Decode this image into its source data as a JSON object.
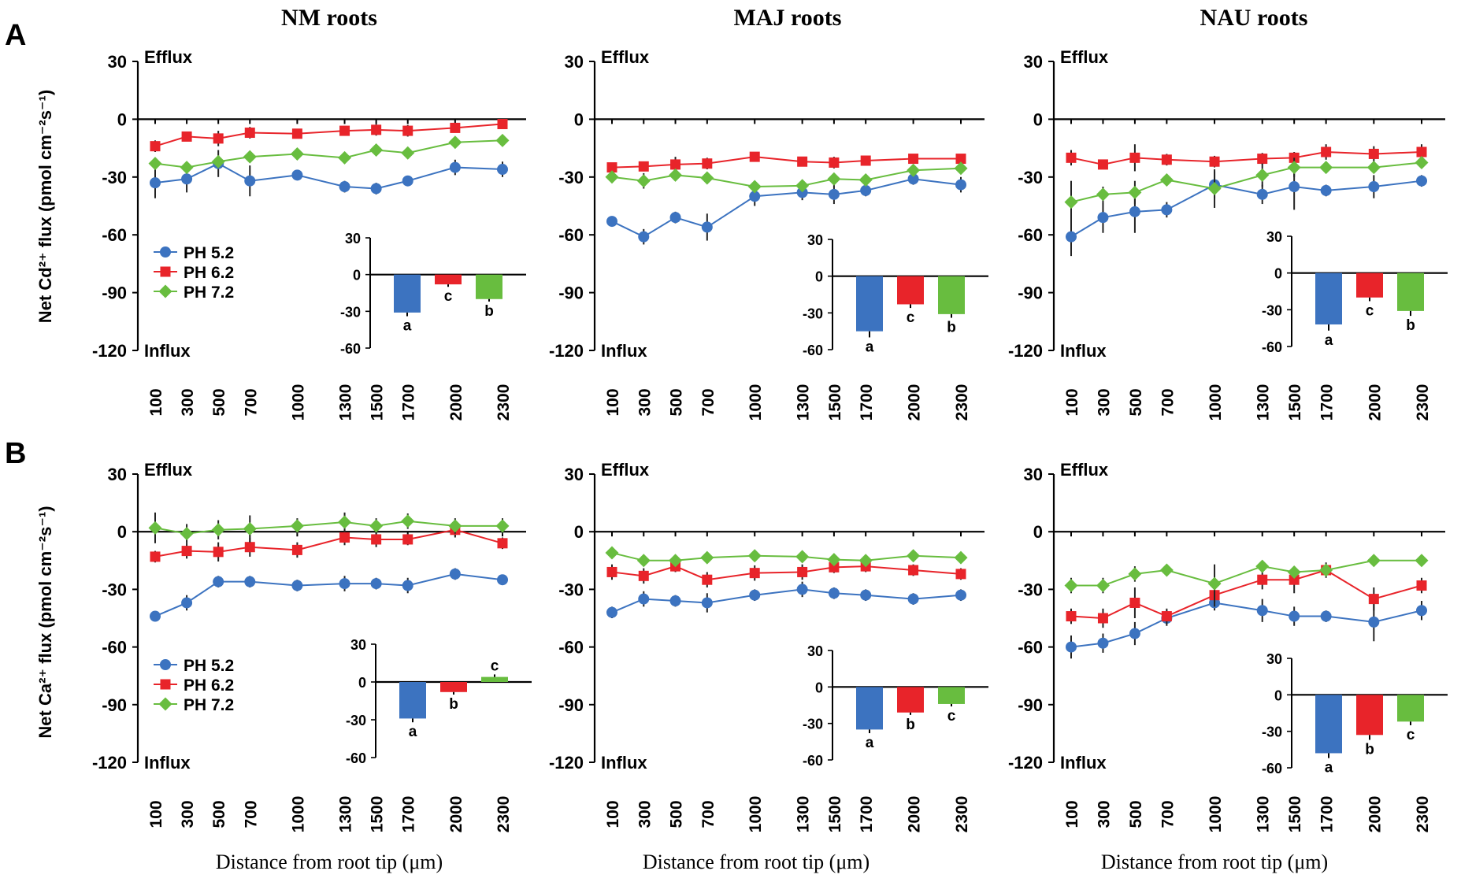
{
  "figure": {
    "panel_labels": [
      "A",
      "B"
    ],
    "column_titles": [
      "NM roots",
      "MAJ roots",
      "NAU roots"
    ],
    "row_ylabels": [
      "Net Cd²⁺ flux (pmol cm⁻²s⁻¹)",
      "Net Ca²⁺ flux (pmol cm⁻²s⁻¹)"
    ],
    "xlabel": "Distance from root tip (μm)",
    "efflux_label": "Efflux",
    "influx_label": "Influx"
  },
  "colors": {
    "PH 5.2": "#3c73c0",
    "PH 6.2": "#e8242a",
    "PH 7.2": "#68bd3f",
    "axis": "#000000"
  },
  "chart_data": [
    {
      "panel": "A",
      "title": "NM roots",
      "type": "line",
      "ylabel": "Net Cd²⁺ flux (pmol cm⁻²s⁻¹)",
      "xlabel": "Distance from root tip (μm)",
      "x": [
        100,
        300,
        500,
        700,
        1000,
        1300,
        1500,
        1700,
        2000,
        2300
      ],
      "ylim": [
        -120,
        30
      ],
      "yticks": [
        30,
        0,
        -30,
        -60,
        -90,
        -120
      ],
      "series": [
        {
          "name": "PH 5.2",
          "marker": "circle",
          "values": [
            -33,
            -31,
            -23,
            -32,
            -29,
            -35,
            -36,
            -32,
            -25,
            -26
          ],
          "errors": [
            8,
            7,
            7,
            8,
            2,
            3,
            3,
            2,
            4,
            4
          ]
        },
        {
          "name": "PH 6.2",
          "marker": "square",
          "values": [
            -14,
            -9,
            -10,
            -7,
            -7.5,
            -6,
            -5.5,
            -6,
            -4.5,
            -2.5
          ],
          "errors": [
            3,
            2,
            4,
            3,
            2,
            2,
            3,
            3,
            2,
            2
          ]
        },
        {
          "name": "PH 7.2",
          "marker": "diamond",
          "values": [
            -23,
            -25,
            -22,
            -19.5,
            -18,
            -20,
            -16,
            -17.5,
            -12,
            -11
          ],
          "errors": [
            3,
            2,
            3,
            3,
            2,
            3,
            3,
            3,
            2,
            2
          ]
        }
      ],
      "legend": "left",
      "inset": {
        "type": "bar",
        "ylim": [
          -60,
          30
        ],
        "yticks": [
          30,
          0,
          -30,
          -60
        ],
        "categories": [
          "PH 5.2",
          "PH 6.2",
          "PH 7.2"
        ],
        "values": [
          -31,
          -8,
          -20
        ],
        "errors": [
          3,
          2,
          2
        ],
        "letters": [
          "a",
          "c",
          "b"
        ]
      }
    },
    {
      "panel": "A",
      "title": "MAJ roots",
      "type": "line",
      "ylabel": "Net Cd²⁺ flux (pmol cm⁻²s⁻¹)",
      "xlabel": "Distance from root tip (μm)",
      "x": [
        100,
        300,
        500,
        700,
        1000,
        1300,
        1500,
        1700,
        2000,
        2300
      ],
      "ylim": [
        -120,
        30
      ],
      "yticks": [
        30,
        0,
        -30,
        -60,
        -90,
        -120
      ],
      "series": [
        {
          "name": "PH 5.2",
          "marker": "circle",
          "values": [
            -53,
            -61,
            -51,
            -56,
            -40,
            -38,
            -39,
            -37,
            -31,
            -34
          ],
          "errors": [
            2,
            4,
            3,
            7,
            5,
            4,
            5,
            3,
            3,
            4
          ]
        },
        {
          "name": "PH 6.2",
          "marker": "square",
          "values": [
            -25,
            -24.5,
            -23.5,
            -23,
            -19.5,
            -22,
            -22.5,
            -21.5,
            -20.5,
            -20.5
          ],
          "errors": [
            2,
            2,
            4,
            3,
            2,
            2,
            3,
            2,
            2,
            2
          ]
        },
        {
          "name": "PH 7.2",
          "marker": "diamond",
          "values": [
            -30,
            -32,
            -29,
            -30.5,
            -35,
            -34.5,
            -31,
            -31.5,
            -26.5,
            -25.5
          ],
          "errors": [
            3,
            4,
            3,
            3,
            3,
            3,
            3,
            3,
            2,
            2
          ]
        }
      ],
      "legend": "none",
      "inset": {
        "type": "bar",
        "ylim": [
          -60,
          30
        ],
        "yticks": [
          30,
          0,
          -30,
          -60
        ],
        "categories": [
          "PH 5.2",
          "PH 6.2",
          "PH 7.2"
        ],
        "values": [
          -45,
          -23,
          -31
        ],
        "errors": [
          5,
          3,
          3
        ],
        "letters": [
          "a",
          "c",
          "b"
        ]
      }
    },
    {
      "panel": "A",
      "title": "NAU roots",
      "type": "line",
      "ylabel": "Net Cd²⁺ flux (pmol cm⁻²s⁻¹)",
      "xlabel": "Distance from root tip (μm)",
      "x": [
        100,
        300,
        500,
        700,
        1000,
        1300,
        1500,
        1700,
        2000,
        2300
      ],
      "ylim": [
        -120,
        30
      ],
      "yticks": [
        30,
        0,
        -30,
        -60,
        -90,
        -120
      ],
      "series": [
        {
          "name": "PH 5.2",
          "marker": "circle",
          "values": [
            -61,
            -51,
            -48,
            -47,
            -34,
            -39,
            -35,
            -37,
            -35,
            -32
          ],
          "errors": [
            10,
            8,
            11,
            4,
            7,
            5,
            12,
            3,
            6,
            3
          ]
        },
        {
          "name": "PH 6.2",
          "marker": "square",
          "values": [
            -20,
            -23.5,
            -20,
            -21,
            -22,
            -20.5,
            -20,
            -17,
            -18,
            -17
          ],
          "errors": [
            4,
            2,
            7,
            3,
            3,
            3,
            3,
            4,
            4,
            4
          ]
        },
        {
          "name": "PH 7.2",
          "marker": "diamond",
          "values": [
            -43,
            -39,
            -38,
            -31.5,
            -36,
            -29,
            -25,
            -25,
            -25,
            -22.5
          ],
          "errors": [
            11,
            4,
            6,
            3,
            10,
            6,
            5,
            3,
            3,
            3
          ]
        }
      ],
      "legend": "none",
      "inset": {
        "type": "bar",
        "ylim": [
          -60,
          30
        ],
        "yticks": [
          30,
          0,
          -30,
          -60
        ],
        "categories": [
          "PH 5.2",
          "PH 6.2",
          "PH 7.2"
        ],
        "values": [
          -42,
          -20,
          -31
        ],
        "errors": [
          5,
          3,
          4
        ],
        "letters": [
          "a",
          "c",
          "b"
        ]
      }
    },
    {
      "panel": "B",
      "title": "NM roots",
      "type": "line",
      "ylabel": "Net Ca²⁺ flux (pmol cm⁻²s⁻¹)",
      "xlabel": "Distance from root tip (μm)",
      "x": [
        100,
        300,
        500,
        700,
        1000,
        1300,
        1500,
        1700,
        2000,
        2300
      ],
      "ylim": [
        -120,
        30
      ],
      "yticks": [
        30,
        0,
        -30,
        -60,
        -90,
        -120
      ],
      "series": [
        {
          "name": "PH 5.2",
          "marker": "circle",
          "values": [
            -44,
            -37,
            -26,
            -26,
            -28,
            -27,
            -27,
            -28,
            -22,
            -25
          ],
          "errors": [
            2,
            4,
            3,
            3,
            3,
            4,
            3,
            4,
            3,
            2
          ]
        },
        {
          "name": "PH 6.2",
          "marker": "square",
          "values": [
            -13,
            -10,
            -10.5,
            -8,
            -9.5,
            -3,
            -4,
            -4,
            1,
            -6
          ],
          "errors": [
            3,
            4,
            5,
            5,
            4,
            4,
            4,
            3,
            4,
            3
          ]
        },
        {
          "name": "PH 7.2",
          "marker": "diamond",
          "values": [
            2,
            -1,
            1,
            1.5,
            3,
            5,
            3,
            5.5,
            3,
            3
          ],
          "errors": [
            8,
            5,
            5,
            7,
            4,
            5,
            4,
            4,
            4,
            4
          ]
        }
      ],
      "legend": "left",
      "inset": {
        "type": "bar",
        "ylim": [
          -60,
          30
        ],
        "yticks": [
          30,
          0,
          -30,
          -60
        ],
        "categories": [
          "PH 5.2",
          "PH 6.2",
          "PH 7.2"
        ],
        "values": [
          -29,
          -8,
          4
        ],
        "errors": [
          3,
          2,
          2
        ],
        "letters": [
          "a",
          "b",
          "c"
        ]
      }
    },
    {
      "panel": "B",
      "title": "MAJ roots",
      "type": "line",
      "ylabel": "Net Ca²⁺ flux (pmol cm⁻²s⁻¹)",
      "xlabel": "Distance from root tip (μm)",
      "x": [
        100,
        300,
        500,
        700,
        1000,
        1300,
        1500,
        1700,
        2000,
        2300
      ],
      "ylim": [
        -120,
        30
      ],
      "yticks": [
        30,
        0,
        -30,
        -60,
        -90,
        -120
      ],
      "series": [
        {
          "name": "PH 5.2",
          "marker": "circle",
          "values": [
            -42,
            -35,
            -36,
            -37,
            -33,
            -30,
            -32,
            -33,
            -35,
            -33
          ],
          "errors": [
            3,
            4,
            3,
            5,
            3,
            4,
            3,
            3,
            3,
            3
          ]
        },
        {
          "name": "PH 6.2",
          "marker": "square",
          "values": [
            -21,
            -23,
            -18,
            -25,
            -21.5,
            -21,
            -18.5,
            -18,
            -20,
            -22
          ],
          "errors": [
            4,
            4,
            3,
            4,
            4,
            4,
            3,
            3,
            3,
            3
          ]
        },
        {
          "name": "PH 7.2",
          "marker": "diamond",
          "values": [
            -11,
            -15,
            -15,
            -13.5,
            -12.5,
            -13,
            -14.5,
            -15,
            -12.5,
            -13.5
          ],
          "errors": [
            2,
            2,
            2,
            2,
            2,
            2,
            2,
            2,
            2,
            2
          ]
        }
      ],
      "legend": "none",
      "inset": {
        "type": "bar",
        "ylim": [
          -60,
          30
        ],
        "yticks": [
          30,
          0,
          -30,
          -60
        ],
        "categories": [
          "PH 5.2",
          "PH 6.2",
          "PH 7.2"
        ],
        "values": [
          -35,
          -21,
          -14
        ],
        "errors": [
          3,
          2,
          2
        ],
        "letters": [
          "a",
          "b",
          "c"
        ]
      }
    },
    {
      "panel": "B",
      "title": "NAU roots",
      "type": "line",
      "ylabel": "Net Ca²⁺ flux (pmol cm⁻²s⁻¹)",
      "xlabel": "Distance from root tip (μm)",
      "x": [
        100,
        300,
        500,
        700,
        1000,
        1300,
        1500,
        1700,
        2000,
        2300
      ],
      "ylim": [
        -120,
        30
      ],
      "yticks": [
        30,
        0,
        -30,
        -60,
        -90,
        -120
      ],
      "series": [
        {
          "name": "PH 5.2",
          "marker": "circle",
          "values": [
            -60,
            -58,
            -53,
            -45,
            -37,
            -41,
            -44,
            -44,
            -47,
            -41
          ],
          "errors": [
            6,
            5,
            6,
            4,
            4,
            6,
            5,
            3,
            10,
            5
          ]
        },
        {
          "name": "PH 6.2",
          "marker": "square",
          "values": [
            -44,
            -45,
            -37,
            -44,
            -33,
            -25,
            -25,
            -20,
            -35,
            -28
          ],
          "errors": [
            4,
            5,
            8,
            4,
            6,
            5,
            7,
            4,
            6,
            4
          ]
        },
        {
          "name": "PH 7.2",
          "marker": "diamond",
          "values": [
            -28,
            -28,
            -22,
            -20,
            -27,
            -18,
            -21,
            -20,
            -15,
            -15
          ],
          "errors": [
            4,
            4,
            4,
            3,
            10,
            3,
            3,
            3,
            3,
            3
          ]
        }
      ],
      "legend": "none",
      "inset": {
        "type": "bar",
        "ylim": [
          -60,
          30
        ],
        "yticks": [
          30,
          0,
          -30,
          -60
        ],
        "categories": [
          "PH 5.2",
          "PH 6.2",
          "PH 7.2"
        ],
        "values": [
          -48,
          -33,
          -22
        ],
        "errors": [
          4,
          4,
          3
        ],
        "letters": [
          "a",
          "b",
          "c"
        ]
      }
    }
  ]
}
